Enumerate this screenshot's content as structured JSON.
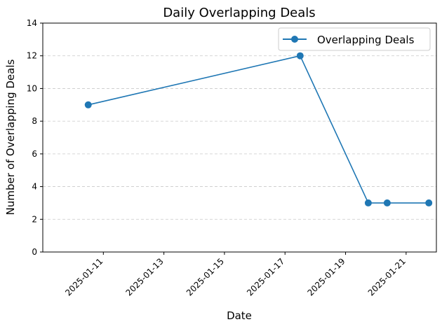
{
  "chart_data": {
    "type": "line",
    "title": "Daily Overlapping Deals",
    "xlabel": "Date",
    "ylabel": "Number of Overlapping Deals",
    "x_type": "date",
    "xlim": [
      "2025-01-09",
      "2025-01-22"
    ],
    "ylim": [
      0,
      14
    ],
    "x_ticks": [
      "2025-01-11",
      "2025-01-13",
      "2025-01-15",
      "2025-01-17",
      "2025-01-19",
      "2025-01-21"
    ],
    "y_ticks": [
      0,
      2,
      4,
      6,
      8,
      10,
      12,
      14
    ],
    "grid": "horizontal dashed",
    "legend_position": "top-right",
    "series": [
      {
        "name": "Overlapping Deals",
        "color": "#1f77b4",
        "marker": "circle",
        "x": [
          "2025-01-10T12:00",
          "2025-01-17T12:00",
          "2025-01-19T18:00",
          "2025-01-20T09:00",
          "2025-01-21T18:00"
        ],
        "y": [
          9,
          12,
          3,
          3,
          3
        ]
      }
    ]
  }
}
